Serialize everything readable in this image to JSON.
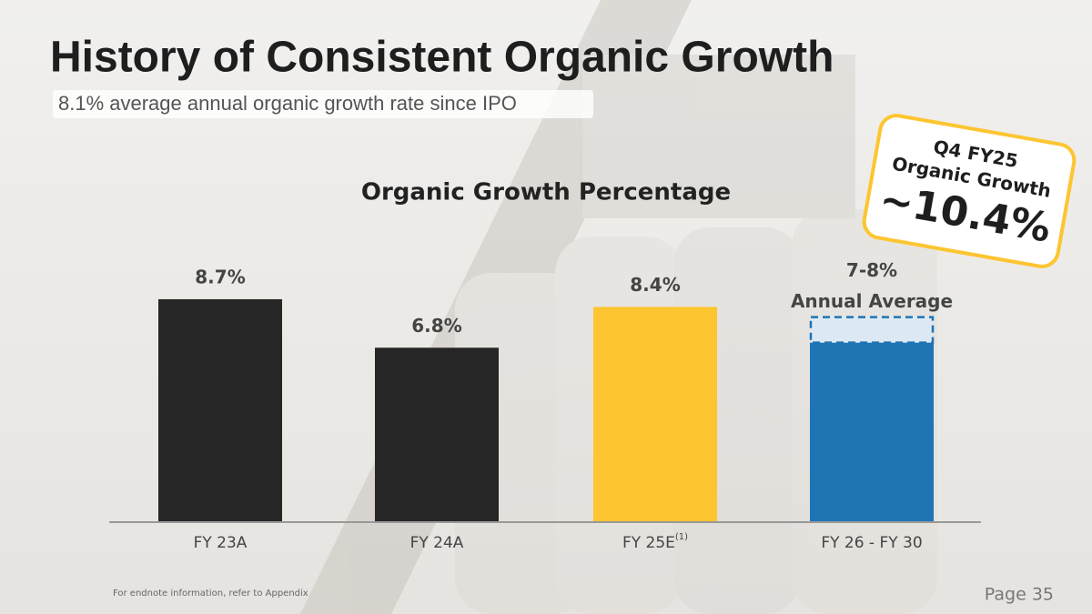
{
  "title": "History of Consistent Organic Growth",
  "subtitle": "8.1% average annual organic growth rate since IPO",
  "chart_data": {
    "type": "bar",
    "title": "Organic Growth Percentage",
    "categories": [
      "FY 23A",
      "FY 24A",
      "FY 25E",
      "FY 26 - FY 30"
    ],
    "category_superscripts": [
      null,
      null,
      "(1)",
      null
    ],
    "values": [
      8.7,
      6.8,
      8.4,
      7
    ],
    "upper": [
      null,
      null,
      null,
      8
    ],
    "value_labels": [
      "8.7%",
      "6.8%",
      "8.4%",
      "7-8%"
    ],
    "range_note": "Annual Average",
    "colors": [
      "#262626",
      "#262626",
      "#fdc530",
      "#1f74b4"
    ],
    "range_color": "#dce9f4",
    "ylim": [
      0,
      10
    ],
    "grid": false
  },
  "callout": {
    "lines": [
      "Q4 FY25",
      "Organic Growth"
    ],
    "value": 10.4,
    "value_label": "~10.4%"
  },
  "footnote": "For endnote information, refer to Appendix",
  "page": "Page 35"
}
